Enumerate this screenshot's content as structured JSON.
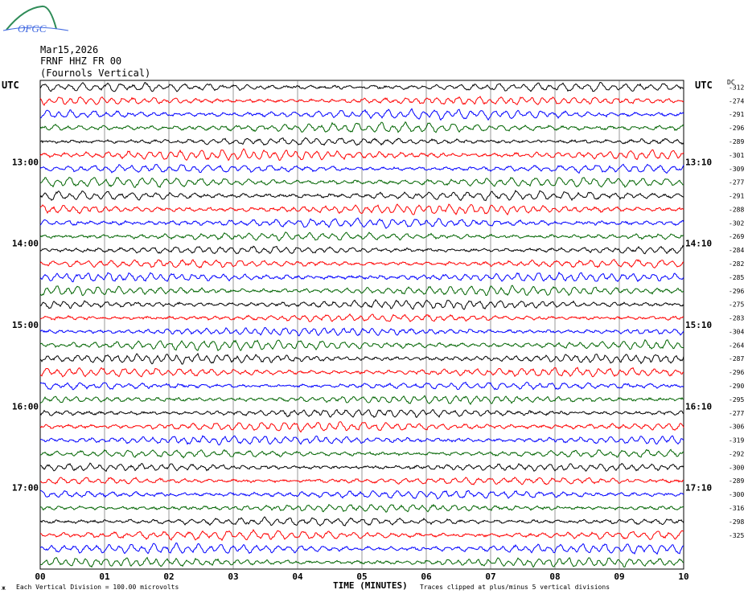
{
  "logo": {
    "text": "OFGC"
  },
  "header": {
    "date": "Mar15,2026",
    "station": "FRNF HHZ FR 00",
    "location": "(Fournols Vertical)"
  },
  "utc_left": "UTC",
  "utc_right": "UTC",
  "dc_label": "DC",
  "footer": {
    "marker": "ж",
    "scale": "Each Vertical Division =  100.00 microvolts",
    "x_title": "TIME (MINUTES)",
    "clip_note": "Traces clipped at plus/minus 5 vertical divisions"
  },
  "chart_data": {
    "type": "line",
    "title": "",
    "xlabel": "TIME (MINUTES)",
    "ylabel": "",
    "xlim": [
      0,
      10
    ],
    "x_ticks": [
      "00",
      "01",
      "02",
      "03",
      "04",
      "05",
      "06",
      "07",
      "08",
      "09",
      "10"
    ],
    "trace_colors": [
      "#000000",
      "#ff0000",
      "#0000ff",
      "#006400"
    ],
    "trace_count": 36,
    "left_hour_labels": [
      "13:00",
      "14:00",
      "15:00",
      "16:00",
      "17:00"
    ],
    "right_hour_labels": [
      "13:10",
      "14:10",
      "15:10",
      "16:10",
      "17:10"
    ],
    "dc_offsets": [
      -312,
      -274,
      -291,
      -296,
      -289,
      -301,
      -309,
      -277,
      -291,
      -288,
      -302,
      -269,
      -284,
      -282,
      -285,
      -296,
      -275,
      -283,
      -304,
      -264,
      -287,
      -296,
      -290,
      -295,
      -277,
      -306,
      -319,
      -292,
      -300,
      -289,
      -300,
      -316,
      -298,
      -325
    ],
    "clip_divisions": 5,
    "microvolts_per_division": 100.0
  }
}
